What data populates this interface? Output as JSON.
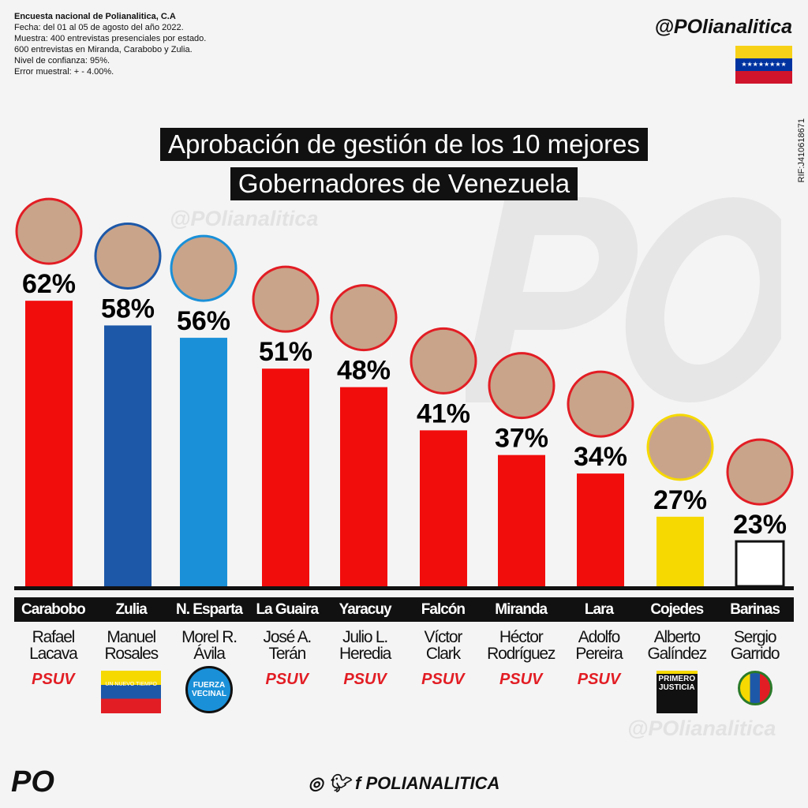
{
  "header": {
    "org": "Encuesta nacional de Polianalitica, C.A",
    "lines": [
      "Fecha: del 01 al 05 de agosto del año 2022.",
      "Muestra: 400 entrevistas presenciales por estado.",
      "600 entrevistas en Miranda, Carabobo y Zulia.",
      "Nivel de confianza: 95%.",
      "Error muestral:  + - 4.00%."
    ],
    "handle": "@POlianalitica",
    "rif": "RIF:J410618671"
  },
  "watermark": "@POlianalitica",
  "bigmark": "PO",
  "chart_data": {
    "type": "bar",
    "title": [
      "Aprobación de gestión de los 10 mejores",
      "Gobernadores de Venezuela"
    ],
    "categories": [
      "Carabobo",
      "Zulia",
      "N. Esparta",
      "La Guaira",
      "Yaracuy",
      "Falcón",
      "Miranda",
      "Lara",
      "Cojedes",
      "Barinas"
    ],
    "values": [
      62,
      58,
      56,
      51,
      48,
      41,
      37,
      34,
      27,
      23
    ],
    "labels": [
      "62%",
      "58%",
      "56%",
      "51%",
      "48%",
      "41%",
      "37%",
      "34%",
      "27%",
      "23%"
    ],
    "governors": [
      [
        "Rafael",
        "Lacava"
      ],
      [
        "Manuel",
        "Rosales"
      ],
      [
        "Morel R.",
        "Ávila"
      ],
      [
        "José A.",
        "Terán"
      ],
      [
        "Julio L.",
        "Heredia"
      ],
      [
        "Víctor",
        "Clark"
      ],
      [
        "Héctor",
        "Rodríguez"
      ],
      [
        "Adolfo",
        "Pereira"
      ],
      [
        "Alberto",
        "Galíndez"
      ],
      [
        "Sergio",
        "Garrido"
      ]
    ],
    "parties": [
      "PSUV",
      "UN NUEVO TIEMPO",
      "FUERZA VECINAL",
      "PSUV",
      "PSUV",
      "PSUV",
      "PSUV",
      "PSUV",
      "PRIMERO JUSTICIA",
      ""
    ],
    "colors": [
      "#f20d0d",
      "#1d58a8",
      "#1a90d8",
      "#f20d0d",
      "#f20d0d",
      "#f20d0d",
      "#f20d0d",
      "#f20d0d",
      "#f6d900",
      "#ffffff"
    ]
  },
  "footer": {
    "logo": "PO",
    "brand": "POLIANALITICA",
    "icons": [
      "instagram-icon",
      "twitter-icon",
      "facebook-icon"
    ]
  }
}
